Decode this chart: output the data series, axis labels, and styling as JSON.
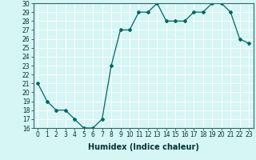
{
  "x": [
    0,
    1,
    2,
    3,
    4,
    5,
    6,
    7,
    8,
    9,
    10,
    11,
    12,
    13,
    14,
    15,
    16,
    17,
    18,
    19,
    20,
    21,
    22,
    23
  ],
  "y": [
    21,
    19,
    18,
    18,
    17,
    16,
    16,
    17,
    23,
    27,
    27,
    29,
    29,
    30,
    28,
    28,
    28,
    29,
    29,
    30,
    30,
    29,
    26,
    25.5
  ],
  "line_color": "#006666",
  "marker": "D",
  "marker_size": 2.0,
  "background_color": "#d6f5f5",
  "grid_color": "#ffffff",
  "xlabel": "Humidex (Indice chaleur)",
  "ylim": [
    16,
    30
  ],
  "xlim": [
    -0.5,
    23.5
  ],
  "yticks": [
    16,
    17,
    18,
    19,
    20,
    21,
    22,
    23,
    24,
    25,
    26,
    27,
    28,
    29,
    30
  ],
  "xticks": [
    0,
    1,
    2,
    3,
    4,
    5,
    6,
    7,
    8,
    9,
    10,
    11,
    12,
    13,
    14,
    15,
    16,
    17,
    18,
    19,
    20,
    21,
    22,
    23
  ],
  "tick_fontsize": 5.5,
  "xlabel_fontsize": 7.0,
  "linewidth": 0.9
}
